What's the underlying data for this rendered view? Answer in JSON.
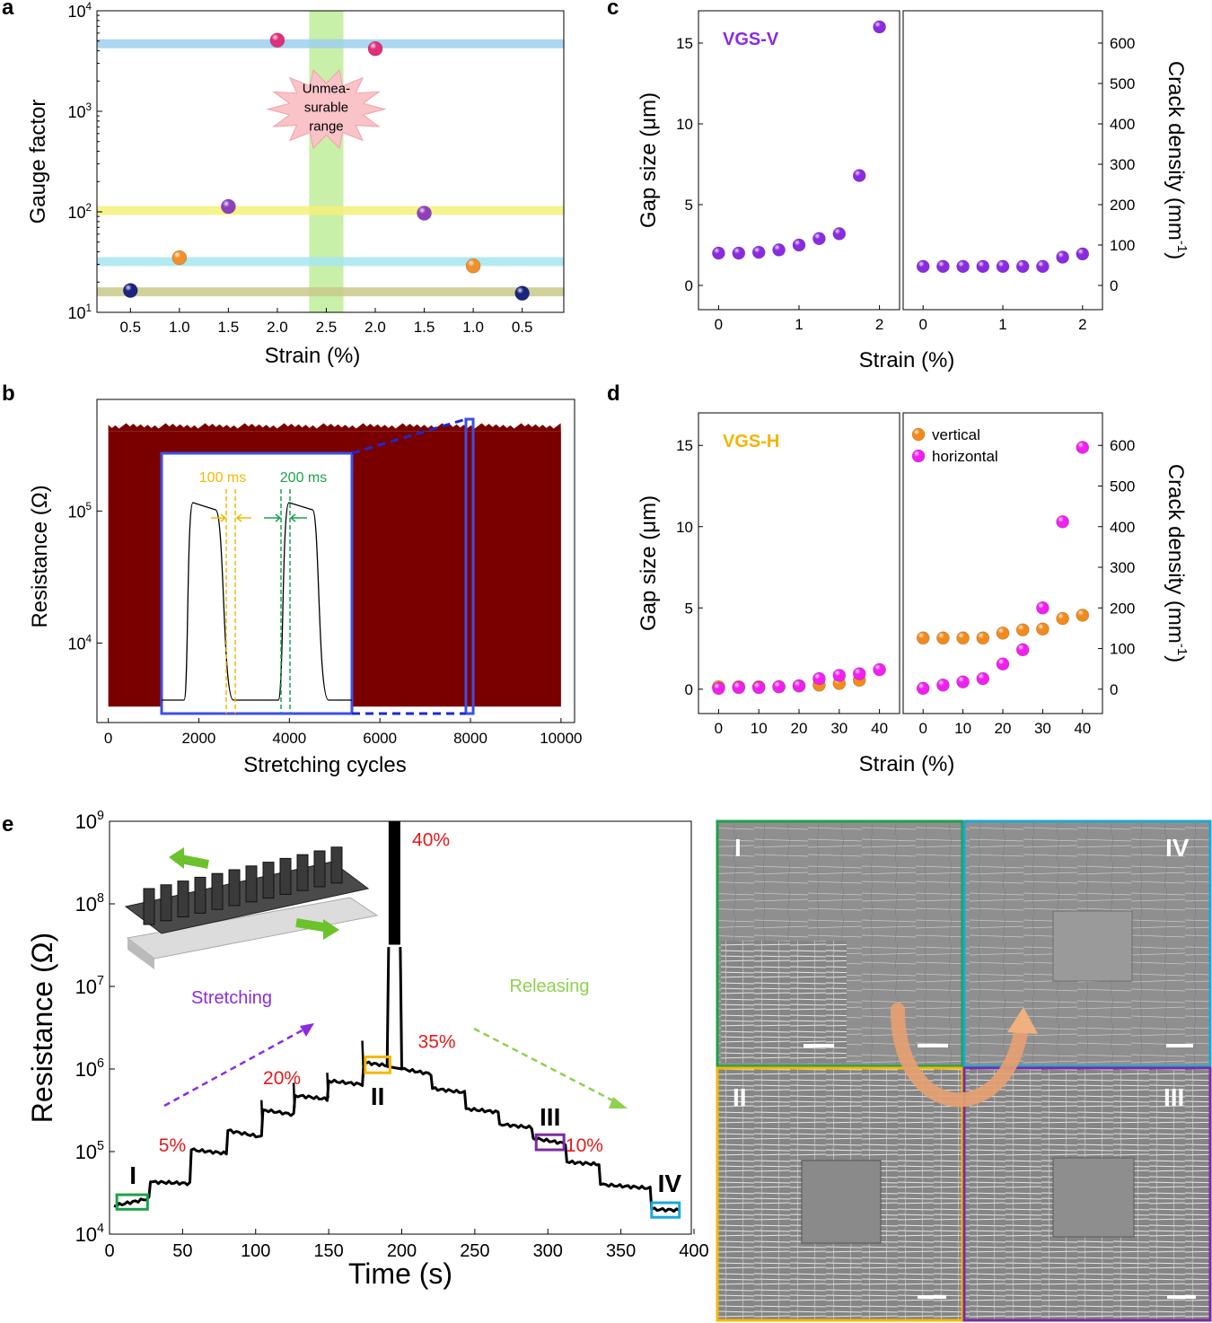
{
  "figure": {
    "panel_labels": {
      "a": "a",
      "b": "b",
      "c": "c",
      "d": "d",
      "e": "e"
    }
  },
  "chart_data": [
    {
      "id": "a",
      "type": "scatter",
      "xlabel": "Strain (%)",
      "ylabel": "Gauge factor",
      "yscale": "log",
      "ylim": [
        10,
        10000
      ],
      "y_ticks": [
        {
          "base": "10",
          "exp": "1"
        },
        {
          "base": "10",
          "exp": "2"
        },
        {
          "base": "10",
          "exp": "3"
        },
        {
          "base": "10",
          "exp": "4"
        }
      ],
      "categories": [
        "0.5",
        "1.0",
        "1.5",
        "2.0",
        "2.5",
        "2.0",
        "1.5",
        "1.0",
        "0.5"
      ],
      "points": [
        {
          "cat": 0,
          "y": 16.5,
          "color": "#1a237e"
        },
        {
          "cat": 1,
          "y": 35,
          "color": "#f2902a"
        },
        {
          "cat": 2,
          "y": 113,
          "color": "#8e3fbf"
        },
        {
          "cat": 3,
          "y": 5100,
          "color": "#e0307a"
        },
        {
          "cat": 5,
          "y": 4200,
          "color": "#e0307a"
        },
        {
          "cat": 6,
          "y": 97,
          "color": "#8e3fbf"
        },
        {
          "cat": 7,
          "y": 29,
          "color": "#f2902a"
        },
        {
          "cat": 8,
          "y": 15.5,
          "color": "#1a237e"
        }
      ],
      "reference_lines": [
        {
          "y": 4700,
          "color": "#9ecfee"
        },
        {
          "y": 103,
          "color": "#f5f07a"
        },
        {
          "y": 32,
          "color": "#a6e6f0"
        },
        {
          "y": 16,
          "color": "#c9c98a"
        }
      ],
      "shaded_range": {
        "from_cat": 3.65,
        "to_cat": 4.35,
        "color": "#c9f0a8"
      },
      "annotation": [
        "Unmea-",
        "surable",
        "range"
      ]
    },
    {
      "id": "b",
      "type": "area",
      "xlabel": "Stretching cycles",
      "ylabel": "Resistance (Ω)",
      "yscale": "log",
      "ylim": [
        2500,
        700000
      ],
      "xlim": [
        0,
        10000
      ],
      "x_ticks": [
        "0",
        "2000",
        "4000",
        "6000",
        "8000",
        "10000"
      ],
      "y_ticks": [
        {
          "base": "10",
          "exp": "4"
        },
        {
          "base": "10",
          "exp": "5"
        }
      ],
      "band": {
        "x_from": 0,
        "x_to": 10000,
        "y_low": 3300,
        "y_high": 400000,
        "color": "#7a0000"
      },
      "inset": {
        "labels": [
          "100 ms",
          "200 ms"
        ],
        "label_colors": [
          "#f5b800",
          "#19a34a"
        ],
        "zoom_window": {
          "x_from": 7900,
          "x_to": 8060
        }
      }
    },
    {
      "id": "c",
      "type": "scatter",
      "title": "VGS-V",
      "xlabel": "Strain (%)",
      "ylabel_left": "Gap size (μm)",
      "ylabel_right": "Crack density (mm",
      "ylabel_right_sup": "-1",
      "ylabel_right_tail": ")",
      "left": {
        "xlim": [
          -0.25,
          2.25
        ],
        "ylim": [
          -1.5,
          17
        ],
        "x_ticks": [
          "0",
          "1",
          "2"
        ],
        "y_ticks": [
          "0",
          "5",
          "10",
          "15"
        ],
        "series": [
          {
            "name": "gap",
            "color": "#8a2be2",
            "x": [
              0,
              0.25,
              0.5,
              0.75,
              1.0,
              1.25,
              1.5,
              1.75,
              2.0
            ],
            "y": [
              2.0,
              2.0,
              2.05,
              2.2,
              2.5,
              2.9,
              3.2,
              6.8,
              16.0
            ]
          }
        ]
      },
      "right": {
        "xlim": [
          -0.25,
          2.25
        ],
        "ylim": [
          -60,
          680
        ],
        "x_ticks": [
          "0",
          "1",
          "2"
        ],
        "y_ticks": [
          "0",
          "100",
          "200",
          "300",
          "400",
          "500",
          "600"
        ],
        "series": [
          {
            "name": "crack",
            "color": "#8a2be2",
            "x": [
              0,
              0.25,
              0.5,
              0.75,
              1.0,
              1.25,
              1.5,
              1.75,
              2.0
            ],
            "y": [
              47,
              47,
              47,
              47,
              47,
              47,
              47,
              70,
              78
            ]
          }
        ]
      }
    },
    {
      "id": "d",
      "type": "scatter",
      "title": "VGS-H",
      "xlabel": "Strain (%)",
      "ylabel_left": "Gap size (μm)",
      "ylabel_right": "Crack density (mm",
      "ylabel_right_sup": "-1",
      "ylabel_right_tail": ")",
      "legend": [
        {
          "name": "vertical",
          "color": "#f28a1c"
        },
        {
          "name": "horizontal",
          "color": "#f020f0"
        }
      ],
      "left": {
        "xlim": [
          -5,
          45
        ],
        "ylim": [
          -1.5,
          17
        ],
        "x_ticks": [
          "0",
          "10",
          "20",
          "30",
          "40"
        ],
        "y_ticks": [
          "0",
          "5",
          "10",
          "15"
        ],
        "series": [
          {
            "name": "vertical",
            "color": "#f28a1c",
            "x": [
              0,
              5,
              10,
              15,
              20,
              25,
              30,
              35
            ],
            "y": [
              0.15,
              0.15,
              0.15,
              0.15,
              0.2,
              0.25,
              0.35,
              0.55
            ]
          },
          {
            "name": "horizontal",
            "color": "#f020f0",
            "x": [
              0,
              5,
              10,
              15,
              20,
              25,
              30,
              35,
              40
            ],
            "y": [
              0.05,
              0.1,
              0.1,
              0.15,
              0.2,
              0.65,
              0.85,
              0.95,
              1.2
            ]
          }
        ]
      },
      "right": {
        "xlim": [
          -5,
          45
        ],
        "ylim": [
          -60,
          680
        ],
        "x_ticks": [
          "0",
          "10",
          "20",
          "30",
          "40"
        ],
        "y_ticks": [
          "0",
          "100",
          "200",
          "300",
          "400",
          "500",
          "600"
        ],
        "series": [
          {
            "name": "vertical",
            "color": "#f28a1c",
            "x": [
              0,
              5,
              10,
              15,
              20,
              25,
              30,
              35,
              40
            ],
            "y": [
              126,
              126,
              126,
              126,
              138,
              146,
              148,
              174,
              182
            ]
          },
          {
            "name": "horizontal",
            "color": "#f020f0",
            "x": [
              0,
              5,
              10,
              15,
              20,
              25,
              30,
              35,
              40
            ],
            "y": [
              2,
              10,
              18,
              26,
              62,
              97,
              200,
              412,
              595
            ]
          }
        ]
      }
    },
    {
      "id": "e",
      "type": "line",
      "xlabel": "Time (s)",
      "ylabel": "Resistance (Ω)",
      "yscale": "log",
      "xlim": [
        0,
        400
      ],
      "ylim": [
        10000,
        1000000000
      ],
      "x_ticks": [
        "0",
        "50",
        "100",
        "150",
        "200",
        "250",
        "300",
        "350",
        "400"
      ],
      "y_ticks": [
        {
          "base": "10",
          "exp": "4"
        },
        {
          "base": "10",
          "exp": "5"
        },
        {
          "base": "10",
          "exp": "6"
        },
        {
          "base": "10",
          "exp": "7"
        },
        {
          "base": "10",
          "exp": "8"
        },
        {
          "base": "10",
          "exp": "9"
        }
      ],
      "steps": [
        {
          "t": [
            3,
            27
          ],
          "r": [
            22000,
            27000
          ]
        },
        {
          "t": [
            28,
            55
          ],
          "r": [
            43000,
            41000
          ]
        },
        {
          "t": [
            56,
            80
          ],
          "r": [
            105000,
            95000
          ]
        },
        {
          "t": [
            81,
            104
          ],
          "r": [
            180000,
            150000
          ]
        },
        {
          "t": [
            105,
            126
          ],
          "r": [
            320000,
            280000
          ]
        },
        {
          "t": [
            127,
            149
          ],
          "r": [
            480000,
            430000
          ]
        },
        {
          "t": [
            150,
            173
          ],
          "r": [
            720000,
            650000
          ]
        },
        {
          "t": [
            174,
            190
          ],
          "r": [
            1200000,
            1100000
          ]
        },
        {
          "t": [
            200,
            220
          ],
          "r": [
            1000000,
            870000
          ]
        },
        {
          "t": [
            221,
            243
          ],
          "r": [
            580000,
            520000
          ]
        },
        {
          "t": [
            244,
            266
          ],
          "r": [
            330000,
            300000
          ]
        },
        {
          "t": [
            267,
            289
          ],
          "r": [
            215000,
            195000
          ]
        },
        {
          "t": [
            290,
            312
          ],
          "r": [
            145000,
            125000
          ]
        },
        {
          "t": [
            313,
            335
          ],
          "r": [
            75000,
            70000
          ]
        },
        {
          "t": [
            336,
            370
          ],
          "r": [
            40000,
            36000
          ]
        },
        {
          "t": [
            371,
            390
          ],
          "r": [
            20000,
            19500
          ]
        }
      ],
      "spikes": [
        {
          "t": 173,
          "r": 2200000
        },
        {
          "t": 104,
          "r": 420000
        },
        {
          "t": 126,
          "r": 680000
        },
        {
          "t": 149,
          "r": 900000
        }
      ],
      "peak": {
        "t_from": 191,
        "t_to": 199,
        "r_top": 1000000000,
        "r_bottom": 32000000
      },
      "strain_labels": [
        {
          "text": "5%",
          "t": 43,
          "r": 100000
        },
        {
          "text": "20%",
          "t": 118,
          "r": 650000
        },
        {
          "text": "35%",
          "t": 224,
          "r": 1800000
        },
        {
          "text": "40%",
          "t": 220,
          "r": 500000000
        },
        {
          "text": "10%",
          "t": 325,
          "r": 100000
        }
      ],
      "region_boxes": [
        {
          "label": "I",
          "t_from": 5,
          "t_to": 26,
          "r_from": 20000,
          "r_to": 30000,
          "color": "#1aa34a"
        },
        {
          "label": "II",
          "t_from": 175,
          "t_to": 192,
          "r_from": 900000,
          "r_to": 1400000,
          "color": "#f5b800"
        },
        {
          "label": "III",
          "t_from": 292,
          "t_to": 311,
          "r_from": 105000,
          "r_to": 160000,
          "color": "#7a2ba0"
        },
        {
          "label": "IV",
          "t_from": 371,
          "t_to": 390,
          "r_from": 16000,
          "r_to": 24000,
          "color": "#1aa8d8"
        }
      ],
      "annotations": {
        "stretching": "Stretching",
        "releasing": "Releasing",
        "stretching_color": "#8a2be2",
        "releasing_color": "#8fd14f"
      }
    }
  ],
  "micrographs": {
    "labels": [
      "I",
      "IV",
      "II",
      "III"
    ],
    "border_colors": [
      "#1aa34a",
      "#1aa8d8",
      "#f5b800",
      "#7a2ba0"
    ]
  }
}
